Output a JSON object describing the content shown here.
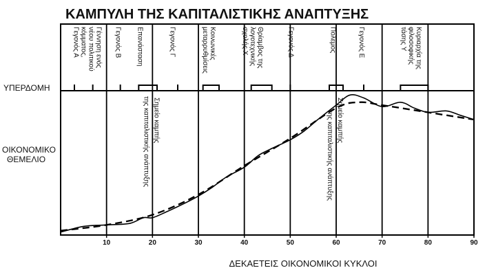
{
  "title": "ΚΑΜΠΥΛΗ ΤΗΣ ΚΑΠΙΤΑΛΙΣΤΙΚΗΣ ΑΝΑΠΤΥΞΗΣ",
  "row_labels": {
    "superstructure": "ΥΠΕΡΔΟΜΗ",
    "base_line1": "ΟΙΚΟΝΟΜΙΚΟ",
    "base_line2": "ΘΕΜΕΛΙΟ"
  },
  "chart_data": {
    "type": "line",
    "title": "ΚΑΜΠΥΛΗ ΤΗΣ ΚΑΠΙΤΑΛΙΣΤΙΚΗΣ ΑΝΑΠΤΥΞΗΣ",
    "xlabel": "ΔΕΚΑΕΤΕΙΣ ΟΙΚΟΝΟΜΙΚΟΙ ΚΥΚΛΟΙ",
    "ylabel": "",
    "xlim": [
      0,
      90
    ],
    "ylim": [
      0,
      100
    ],
    "xticks": [
      10,
      20,
      30,
      40,
      50,
      60,
      70,
      80,
      90
    ],
    "vertical_gridlines": [
      10,
      20,
      30,
      40,
      50,
      60,
      70,
      80
    ],
    "series": [
      {
        "style": "solid-wavy",
        "points": [
          [
            0,
            2
          ],
          [
            5,
            6
          ],
          [
            10,
            7
          ],
          [
            15,
            8
          ],
          [
            18,
            12
          ],
          [
            20,
            12
          ],
          [
            23,
            16
          ],
          [
            27,
            22
          ],
          [
            30,
            27
          ],
          [
            33,
            33
          ],
          [
            36,
            40
          ],
          [
            40,
            47
          ],
          [
            43,
            55
          ],
          [
            46,
            60
          ],
          [
            50,
            66
          ],
          [
            53,
            72
          ],
          [
            56,
            80
          ],
          [
            60,
            90
          ],
          [
            63,
            97
          ],
          [
            66,
            95
          ],
          [
            70,
            89
          ],
          [
            74,
            92
          ],
          [
            77,
            88
          ],
          [
            80,
            85
          ],
          [
            84,
            86
          ],
          [
            87,
            83
          ],
          [
            90,
            80
          ]
        ]
      },
      {
        "style": "dashed-trend",
        "points": [
          [
            0,
            3
          ],
          [
            10,
            7
          ],
          [
            20,
            14
          ],
          [
            30,
            28
          ],
          [
            40,
            48
          ],
          [
            50,
            67
          ],
          [
            60,
            88
          ],
          [
            65,
            92
          ],
          [
            70,
            90
          ],
          [
            80,
            85
          ],
          [
            90,
            80
          ]
        ]
      }
    ],
    "annotations": [
      {
        "at": 20,
        "lines": [
          "Σημείο καμπής",
          "της καπιταλιστικής ανάπτυξης"
        ]
      },
      {
        "at": 60,
        "lines": [
          "Σημείο καμπής",
          "της καπιταλιστικής ανάπτυξης"
        ]
      }
    ],
    "events": [
      {
        "at": 6,
        "lines": [
          "Γέννηση ενός",
          "νέου πολιτικού",
          "κόμματος,",
          "Γεγονός Α"
        ]
      },
      {
        "at": 12.7,
        "lines": [
          "Γεγονός Β"
        ]
      },
      {
        "at": 17.5,
        "lines": [
          "Επανάσταση"
        ]
      },
      {
        "at": 24.5,
        "lines": [
          "Γεγονός Γ"
        ]
      },
      {
        "at": 32.5,
        "lines": [
          "Κοινωνικές",
          "μεταρρυθμίσεις"
        ]
      },
      {
        "at": 42,
        "lines": [
          "Θρίαμβος της",
          "λογοτεχνικής",
          "σχολής Χ"
        ]
      },
      {
        "at": 50.3,
        "lines": [
          "Γεγονός Δ"
        ]
      },
      {
        "at": 59.5,
        "lines": [
          "Πόλεμος"
        ]
      },
      {
        "at": 65.7,
        "lines": [
          "Γεγονός Ε"
        ]
      },
      {
        "at": 76.5,
        "lines": [
          "Κυριαρχία της",
          "φιλοσοφικής",
          "τάσης Υ"
        ]
      }
    ],
    "event_markers": [
      {
        "type": "tick",
        "at": 3
      },
      {
        "type": "tick",
        "at": 7
      },
      {
        "type": "tick",
        "at": 13
      },
      {
        "type": "box",
        "from": 17,
        "to": 21
      },
      {
        "type": "tick",
        "at": 25.5
      },
      {
        "type": "box",
        "from": 31,
        "to": 34.5
      },
      {
        "type": "box",
        "from": 41.5,
        "to": 46
      },
      {
        "type": "tick",
        "at": 50
      },
      {
        "type": "box",
        "from": 58.5,
        "to": 61.5
      },
      {
        "type": "tick",
        "at": 66
      },
      {
        "type": "box",
        "from": 74,
        "to": 80
      }
    ]
  }
}
